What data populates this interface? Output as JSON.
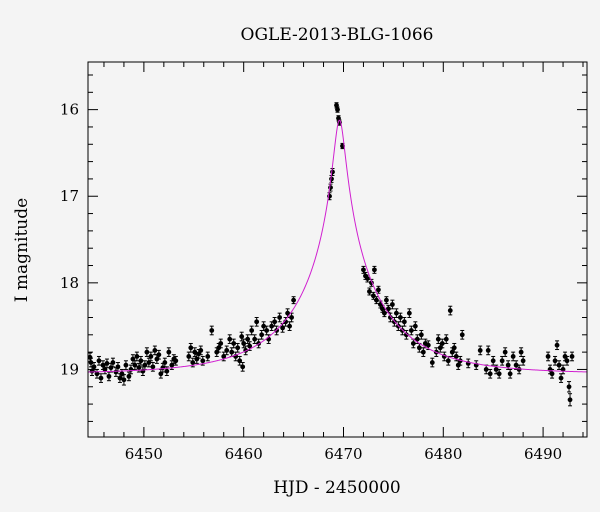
{
  "chart_data": {
    "type": "scatter",
    "title": "OGLE-2013-BLG-1066",
    "xlabel": "HJD - 2450000",
    "ylabel": "I magnitude",
    "xlim": [
      6444.4,
      6494.4
    ],
    "ylim": [
      15.45,
      19.78
    ],
    "y_inverted": true,
    "x_ticks": [
      6450,
      6460,
      6470,
      6480,
      6490
    ],
    "y_ticks": [
      16,
      17,
      18,
      19
    ],
    "grid": false,
    "colors": {
      "model": "#d020d0",
      "points": "#000000",
      "background": "#f4f4f4"
    },
    "model": {
      "t0": 6469.6,
      "base_mag": 19.05,
      "peak_mag": 16.12,
      "u0": 0.06,
      "tE": 9.0
    },
    "series": [
      {
        "type": "points_with_errorbars",
        "points": [
          [
            6444.6,
            18.86,
            0.05
          ],
          [
            6444.7,
            18.92,
            0.05
          ],
          [
            6444.8,
            19.02,
            0.05
          ],
          [
            6445.0,
            18.97,
            0.05
          ],
          [
            6445.3,
            19.05,
            0.05
          ],
          [
            6445.5,
            18.9,
            0.05
          ],
          [
            6445.7,
            19.1,
            0.05
          ],
          [
            6445.9,
            18.95,
            0.05
          ],
          [
            6446.1,
            19.0,
            0.05
          ],
          [
            6446.3,
            18.93,
            0.05
          ],
          [
            6446.5,
            19.08,
            0.05
          ],
          [
            6446.7,
            18.98,
            0.05
          ],
          [
            6446.9,
            18.92,
            0.05
          ],
          [
            6447.2,
            19.03,
            0.05
          ],
          [
            6447.4,
            18.97,
            0.05
          ],
          [
            6447.6,
            19.1,
            0.05
          ],
          [
            6447.8,
            19.05,
            0.05
          ],
          [
            6448.0,
            19.12,
            0.06
          ],
          [
            6448.2,
            18.95,
            0.05
          ],
          [
            6448.5,
            19.08,
            0.05
          ],
          [
            6448.7,
            19.0,
            0.05
          ],
          [
            6448.9,
            18.88,
            0.05
          ],
          [
            6449.1,
            18.95,
            0.05
          ],
          [
            6449.3,
            18.85,
            0.05
          ],
          [
            6449.5,
            18.98,
            0.05
          ],
          [
            6449.7,
            18.9,
            0.05
          ],
          [
            6449.9,
            19.02,
            0.05
          ],
          [
            6450.1,
            18.95,
            0.05
          ],
          [
            6450.3,
            18.8,
            0.05
          ],
          [
            6450.5,
            18.92,
            0.05
          ],
          [
            6450.7,
            18.85,
            0.05
          ],
          [
            6450.9,
            18.97,
            0.05
          ],
          [
            6451.1,
            18.78,
            0.05
          ],
          [
            6451.3,
            18.88,
            0.05
          ],
          [
            6451.5,
            18.83,
            0.05
          ],
          [
            6451.7,
            19.05,
            0.05
          ],
          [
            6451.9,
            18.98,
            0.05
          ],
          [
            6452.1,
            18.92,
            0.05
          ],
          [
            6452.3,
            19.02,
            0.05
          ],
          [
            6452.5,
            18.8,
            0.05
          ],
          [
            6452.8,
            18.95,
            0.05
          ],
          [
            6453.0,
            18.88,
            0.05
          ],
          [
            6453.2,
            18.9,
            0.05
          ],
          [
            6454.5,
            18.85,
            0.05
          ],
          [
            6454.7,
            18.75,
            0.05
          ],
          [
            6454.9,
            18.92,
            0.05
          ],
          [
            6455.1,
            18.8,
            0.05
          ],
          [
            6455.3,
            18.88,
            0.05
          ],
          [
            6455.5,
            18.82,
            0.05
          ],
          [
            6455.7,
            18.78,
            0.05
          ],
          [
            6455.9,
            18.9,
            0.05
          ],
          [
            6456.4,
            18.85,
            0.05
          ],
          [
            6456.8,
            18.55,
            0.05
          ],
          [
            6457.3,
            18.8,
            0.05
          ],
          [
            6457.5,
            18.75,
            0.05
          ],
          [
            6457.7,
            18.7,
            0.05
          ],
          [
            6458.0,
            18.85,
            0.05
          ],
          [
            6458.3,
            18.78,
            0.05
          ],
          [
            6458.6,
            18.65,
            0.05
          ],
          [
            6458.8,
            18.8,
            0.05
          ],
          [
            6459.0,
            18.7,
            0.05
          ],
          [
            6459.2,
            18.85,
            0.05
          ],
          [
            6459.4,
            18.75,
            0.05
          ],
          [
            6459.6,
            18.9,
            0.05
          ],
          [
            6459.8,
            18.62,
            0.05
          ],
          [
            6460.0,
            18.7,
            0.05
          ],
          [
            6460.2,
            18.78,
            0.05
          ],
          [
            6460.4,
            18.65,
            0.05
          ],
          [
            6460.6,
            18.73,
            0.05
          ],
          [
            6460.8,
            18.55,
            0.05
          ],
          [
            6461.1,
            18.65,
            0.05
          ],
          [
            6461.3,
            18.45,
            0.05
          ],
          [
            6461.5,
            18.7,
            0.05
          ],
          [
            6461.8,
            18.6,
            0.05
          ],
          [
            6462.0,
            18.5,
            0.05
          ],
          [
            6462.3,
            18.55,
            0.05
          ],
          [
            6462.5,
            18.65,
            0.05
          ],
          [
            6462.8,
            18.5,
            0.05
          ],
          [
            6463.1,
            18.45,
            0.05
          ],
          [
            6463.3,
            18.55,
            0.05
          ],
          [
            6463.6,
            18.4,
            0.05
          ],
          [
            6463.9,
            18.52,
            0.05
          ],
          [
            6464.2,
            18.45,
            0.05
          ],
          [
            6464.4,
            18.35,
            0.05
          ],
          [
            6464.6,
            18.5,
            0.05
          ],
          [
            6464.8,
            18.4,
            0.05
          ],
          [
            6465.0,
            18.2,
            0.04
          ],
          [
            6459.9,
            18.97,
            0.05
          ],
          [
            6468.6,
            17.0,
            0.04
          ],
          [
            6468.7,
            16.9,
            0.04
          ],
          [
            6468.8,
            16.8,
            0.04
          ],
          [
            6468.9,
            16.72,
            0.04
          ],
          [
            6469.3,
            15.95,
            0.03
          ],
          [
            6469.4,
            16.0,
            0.03
          ],
          [
            6469.5,
            16.1,
            0.03
          ],
          [
            6469.6,
            16.15,
            0.03
          ],
          [
            6469.9,
            16.42,
            0.03
          ],
          [
            6472.0,
            17.85,
            0.04
          ],
          [
            6472.2,
            17.92,
            0.04
          ],
          [
            6472.4,
            17.95,
            0.04
          ],
          [
            6472.6,
            18.1,
            0.04
          ],
          [
            6472.8,
            18.0,
            0.04
          ],
          [
            6473.0,
            18.15,
            0.04
          ],
          [
            6473.1,
            17.85,
            0.04
          ],
          [
            6473.3,
            18.2,
            0.04
          ],
          [
            6473.5,
            18.08,
            0.04
          ],
          [
            6473.7,
            18.25,
            0.04
          ],
          [
            6473.9,
            18.3,
            0.04
          ],
          [
            6474.1,
            18.35,
            0.04
          ],
          [
            6474.3,
            18.2,
            0.04
          ],
          [
            6474.5,
            18.3,
            0.04
          ],
          [
            6474.7,
            18.4,
            0.05
          ],
          [
            6474.9,
            18.25,
            0.05
          ],
          [
            6475.1,
            18.45,
            0.05
          ],
          [
            6475.3,
            18.35,
            0.05
          ],
          [
            6475.5,
            18.5,
            0.05
          ],
          [
            6475.7,
            18.4,
            0.05
          ],
          [
            6475.9,
            18.55,
            0.05
          ],
          [
            6476.1,
            18.45,
            0.05
          ],
          [
            6476.3,
            18.6,
            0.05
          ],
          [
            6476.6,
            18.35,
            0.05
          ],
          [
            6476.8,
            18.55,
            0.05
          ],
          [
            6477.0,
            18.7,
            0.05
          ],
          [
            6477.2,
            18.5,
            0.05
          ],
          [
            6477.4,
            18.65,
            0.05
          ],
          [
            6477.6,
            18.75,
            0.05
          ],
          [
            6477.8,
            18.6,
            0.05
          ],
          [
            6478.0,
            18.8,
            0.05
          ],
          [
            6478.2,
            18.7,
            0.05
          ],
          [
            6478.5,
            18.72,
            0.05
          ],
          [
            6478.9,
            18.92,
            0.05
          ],
          [
            6479.3,
            18.8,
            0.05
          ],
          [
            6479.5,
            18.65,
            0.05
          ],
          [
            6479.7,
            18.75,
            0.05
          ],
          [
            6479.9,
            18.7,
            0.05
          ],
          [
            6480.1,
            18.85,
            0.05
          ],
          [
            6480.3,
            18.65,
            0.05
          ],
          [
            6480.5,
            18.9,
            0.05
          ],
          [
            6480.7,
            18.32,
            0.05
          ],
          [
            6480.9,
            18.8,
            0.05
          ],
          [
            6481.1,
            18.75,
            0.05
          ],
          [
            6481.3,
            18.85,
            0.05
          ],
          [
            6481.5,
            18.95,
            0.05
          ],
          [
            6481.7,
            18.9,
            0.05
          ],
          [
            6481.9,
            18.6,
            0.05
          ],
          [
            6482.5,
            18.93,
            0.05
          ],
          [
            6483.3,
            18.95,
            0.05
          ],
          [
            6483.7,
            18.78,
            0.05
          ],
          [
            6484.3,
            19.0,
            0.05
          ],
          [
            6484.5,
            18.78,
            0.05
          ],
          [
            6484.7,
            19.05,
            0.05
          ],
          [
            6485.0,
            18.9,
            0.05
          ],
          [
            6485.3,
            19.0,
            0.05
          ],
          [
            6485.6,
            19.05,
            0.05
          ],
          [
            6485.9,
            18.9,
            0.05
          ],
          [
            6486.2,
            18.8,
            0.05
          ],
          [
            6486.5,
            18.95,
            0.05
          ],
          [
            6486.7,
            19.05,
            0.05
          ],
          [
            6487.0,
            18.85,
            0.05
          ],
          [
            6487.3,
            18.95,
            0.05
          ],
          [
            6487.6,
            19.0,
            0.05
          ],
          [
            6487.8,
            18.8,
            0.05
          ],
          [
            6488.0,
            18.9,
            0.05
          ],
          [
            6490.5,
            18.85,
            0.05
          ],
          [
            6490.7,
            19.0,
            0.05
          ],
          [
            6490.9,
            19.05,
            0.05
          ],
          [
            6491.2,
            18.9,
            0.05
          ],
          [
            6491.4,
            18.72,
            0.05
          ],
          [
            6491.6,
            18.95,
            0.05
          ],
          [
            6491.8,
            19.1,
            0.05
          ],
          [
            6492.0,
            19.0,
            0.05
          ],
          [
            6492.2,
            18.85,
            0.05
          ],
          [
            6492.4,
            18.9,
            0.05
          ],
          [
            6492.6,
            19.2,
            0.06
          ],
          [
            6492.7,
            19.35,
            0.07
          ],
          [
            6492.9,
            18.85,
            0.05
          ]
        ]
      }
    ]
  }
}
